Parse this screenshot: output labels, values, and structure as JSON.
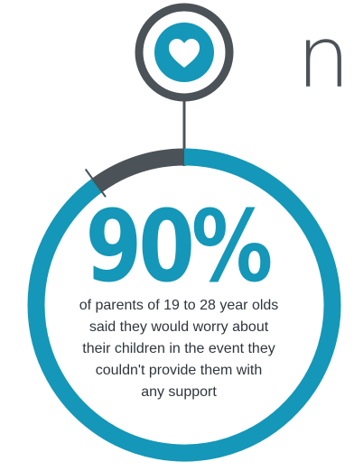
{
  "header": {
    "partial_title": "n"
  },
  "stat": {
    "value": "90%",
    "fraction": 0.9,
    "caption_lines": [
      "of parents of 19 to 28 year olds",
      "said they would worry about",
      "their children in the event they",
      "couldn't provide them with",
      "any support"
    ]
  },
  "icon": {
    "name": "heart-icon"
  },
  "colors": {
    "accent": "#1497b8",
    "dark": "#4b5258",
    "text": "#2f363c",
    "background": "#ffffff"
  }
}
